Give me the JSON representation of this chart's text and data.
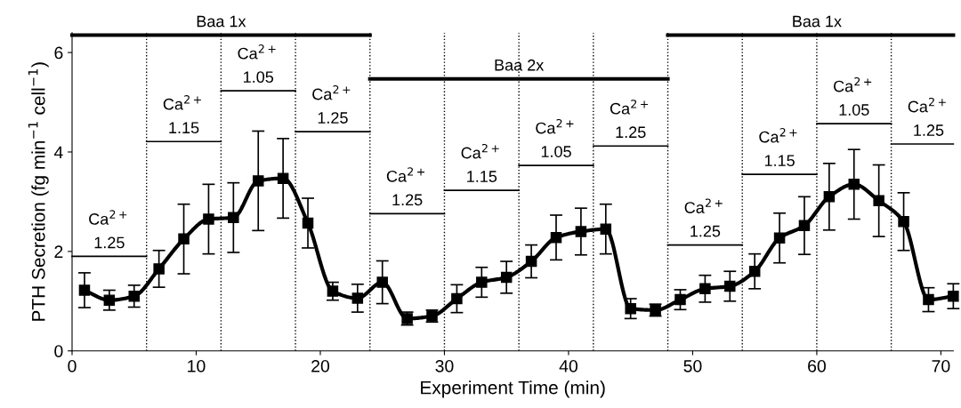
{
  "chart_data": {
    "type": "line",
    "xlabel": "Experiment Time (min)",
    "ylabel": "PTH Secretion (fg min$^{−1}$ cell$^{−1}$)",
    "xlim": [
      0,
      71
    ],
    "xticks": [
      0,
      10,
      20,
      30,
      40,
      50,
      60,
      70
    ],
    "ylim": [
      0,
      6.4
    ],
    "yticks": [
      0,
      2,
      4,
      6
    ],
    "grid": false,
    "legend": false,
    "series": [
      {
        "color": "#000000",
        "marker": "square",
        "line_style": "solid",
        "x": [
          1,
          3,
          5,
          7,
          9,
          11,
          13,
          15,
          17,
          19,
          21,
          23,
          25,
          27,
          29,
          31,
          33,
          35,
          37,
          39,
          41,
          43,
          45,
          47,
          49,
          51,
          53,
          55,
          57,
          59,
          61,
          63,
          65,
          67,
          69,
          71
        ],
        "values": [
          1.22,
          1.02,
          1.1,
          1.65,
          2.25,
          2.65,
          2.68,
          3.42,
          3.47,
          2.57,
          1.2,
          1.06,
          1.38,
          0.65,
          0.7,
          1.05,
          1.38,
          1.48,
          1.8,
          2.28,
          2.4,
          2.45,
          0.85,
          0.82,
          1.03,
          1.25,
          1.3,
          1.6,
          2.27,
          2.52,
          3.1,
          3.35,
          3.02,
          2.6,
          1.03,
          1.1
        ],
        "errors": [
          0.35,
          0.2,
          0.22,
          0.37,
          0.7,
          0.7,
          0.7,
          1.0,
          0.8,
          0.5,
          0.18,
          0.28,
          0.43,
          0.13,
          0.12,
          0.28,
          0.3,
          0.32,
          0.33,
          0.45,
          0.47,
          0.5,
          0.2,
          0.12,
          0.2,
          0.27,
          0.3,
          0.35,
          0.5,
          0.58,
          0.67,
          0.7,
          0.72,
          0.58,
          0.24,
          0.25
        ]
      },
      {
        "color": "#000000",
        "marker": "none",
        "line_style": "solid",
        "x": [
          0,
          6
        ],
        "values": [
          1.9,
          1.9
        ]
      },
      {
        "color": "#000000",
        "marker": "none",
        "line_style": "solid",
        "x": [
          6,
          12
        ],
        "values": [
          4.21,
          4.21
        ]
      },
      {
        "color": "#000000",
        "marker": "none",
        "line_style": "solid",
        "x": [
          12,
          18
        ],
        "values": [
          5.23,
          5.23
        ]
      },
      {
        "color": "#000000",
        "marker": "none",
        "line_style": "solid",
        "x": [
          18,
          24
        ],
        "values": [
          4.41,
          4.41
        ]
      },
      {
        "color": "#000000",
        "marker": "none",
        "line_style": "solid",
        "x": [
          24,
          30
        ],
        "values": [
          2.76,
          2.76
        ]
      },
      {
        "color": "#000000",
        "marker": "none",
        "line_style": "solid",
        "x": [
          30,
          36
        ],
        "values": [
          3.23,
          3.23
        ]
      },
      {
        "color": "#000000",
        "marker": "none",
        "line_style": "solid",
        "x": [
          36,
          42
        ],
        "values": [
          3.73,
          3.73
        ]
      },
      {
        "color": "#000000",
        "marker": "none",
        "line_style": "solid",
        "x": [
          42,
          48
        ],
        "values": [
          4.12,
          4.12
        ]
      },
      {
        "color": "#000000",
        "marker": "none",
        "line_style": "solid",
        "x": [
          48,
          54
        ],
        "values": [
          2.13,
          2.13
        ]
      },
      {
        "color": "#000000",
        "marker": "none",
        "line_style": "solid",
        "x": [
          54,
          60
        ],
        "values": [
          3.55,
          3.55
        ]
      },
      {
        "color": "#000000",
        "marker": "none",
        "line_style": "solid",
        "x": [
          60,
          66
        ],
        "values": [
          4.57,
          4.57
        ]
      },
      {
        "color": "#000000",
        "marker": "none",
        "line_style": "solid",
        "x": [
          66,
          71
        ],
        "values": [
          4.16,
          4.16
        ]
      },
      {
        "color": "#000000",
        "marker": "none",
        "line_style": "solid",
        "x": [
          0,
          24
        ],
        "values": [
          6.35,
          6.35
        ]
      },
      {
        "color": "#000000",
        "marker": "none",
        "line_style": "solid",
        "x": [
          24,
          48
        ],
        "values": [
          5.47,
          5.47
        ]
      },
      {
        "color": "#000000",
        "marker": "none",
        "line_style": "solid",
        "x": [
          48,
          71
        ],
        "values": [
          6.35,
          6.35
        ]
      }
    ],
    "ref_lines": [
      {
        "axis": "x",
        "value": 6,
        "line_style": "dotted",
        "color": "#000000"
      },
      {
        "axis": "x",
        "value": 12,
        "line_style": "dotted",
        "color": "#000000"
      },
      {
        "axis": "x",
        "value": 18,
        "line_style": "dotted",
        "color": "#000000"
      },
      {
        "axis": "x",
        "value": 24,
        "line_style": "dotted",
        "color": "#000000"
      },
      {
        "axis": "x",
        "value": 30,
        "line_style": "dotted",
        "color": "#000000"
      },
      {
        "axis": "x",
        "value": 36,
        "line_style": "dotted",
        "color": "#000000"
      },
      {
        "axis": "x",
        "value": 42,
        "line_style": "dotted",
        "color": "#000000"
      },
      {
        "axis": "x",
        "value": 48,
        "line_style": "dotted",
        "color": "#000000"
      },
      {
        "axis": "x",
        "value": 54,
        "line_style": "dotted",
        "color": "#000000"
      },
      {
        "axis": "x",
        "value": 60,
        "line_style": "dotted",
        "color": "#000000"
      },
      {
        "axis": "x",
        "value": 66,
        "line_style": "dotted",
        "color": "#000000"
      }
    ],
    "annotations": [
      {
        "text": "Baa 1x",
        "x": 12,
        "y": 6.35
      },
      {
        "text": "Baa 2x",
        "x": 36,
        "y": 5.47
      },
      {
        "text": "Baa 1x",
        "x": 60,
        "y": 6.35
      },
      {
        "text": "Ca$^{2+}$",
        "x": 3,
        "y": 1.9
      },
      {
        "text": "1.25",
        "x": 3,
        "y": 1.9
      },
      {
        "text": "Ca$^{2+}$",
        "x": 9,
        "y": 4.21
      },
      {
        "text": "1.15",
        "x": 9,
        "y": 4.21
      },
      {
        "text": "Ca$^{2+}$",
        "x": 15,
        "y": 5.23
      },
      {
        "text": "1.05",
        "x": 15,
        "y": 5.23
      },
      {
        "text": "Ca$^{2+}$",
        "x": 21,
        "y": 4.41
      },
      {
        "text": "1.25",
        "x": 21,
        "y": 4.41
      },
      {
        "text": "Ca$^{2+}$",
        "x": 27,
        "y": 2.76
      },
      {
        "text": "1.25",
        "x": 27,
        "y": 2.76
      },
      {
        "text": "Ca$^{2+}$",
        "x": 33,
        "y": 3.23
      },
      {
        "text": "1.15",
        "x": 33,
        "y": 3.23
      },
      {
        "text": "Ca$^{2+}$",
        "x": 39,
        "y": 3.73
      },
      {
        "text": "1.05",
        "x": 39,
        "y": 3.73
      },
      {
        "text": "Ca$^{2+}$",
        "x": 45,
        "y": 4.12
      },
      {
        "text": "1.25",
        "x": 45,
        "y": 4.12
      },
      {
        "text": "Ca$^{2+}$",
        "x": 51,
        "y": 2.13
      },
      {
        "text": "1.25",
        "x": 51,
        "y": 2.13
      },
      {
        "text": "Ca$^{2+}$",
        "x": 57,
        "y": 3.55
      },
      {
        "text": "1.15",
        "x": 57,
        "y": 3.55
      },
      {
        "text": "Ca$^{2+}$",
        "x": 63,
        "y": 4.57
      },
      {
        "text": "1.05",
        "x": 63,
        "y": 4.57
      },
      {
        "text": "Ca$^{2+}$",
        "x": 69,
        "y": 4.16
      },
      {
        "text": "1.25",
        "x": 69,
        "y": 4.16
      }
    ]
  }
}
